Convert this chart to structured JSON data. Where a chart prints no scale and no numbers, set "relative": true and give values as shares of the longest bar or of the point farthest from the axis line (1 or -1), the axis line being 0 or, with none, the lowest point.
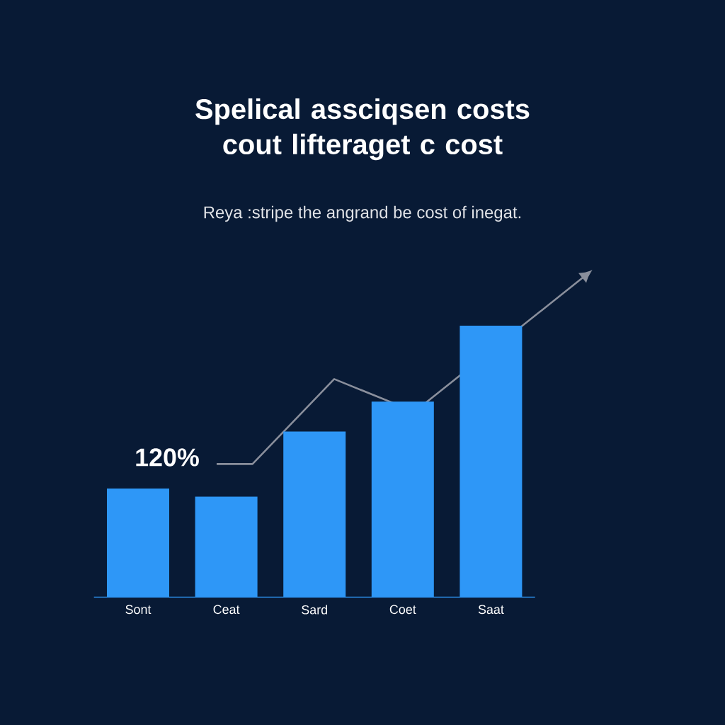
{
  "chart_data": {
    "type": "bar",
    "title": "Spelical assciqsen costs cout lifteraget c cost",
    "subtitle": "Reya :stripe the angrand be cost of inegat.",
    "categories": [
      "Sont",
      "Ceat",
      "Sard",
      "Coet",
      "Saat"
    ],
    "values": [
      0.4,
      0.37,
      0.61,
      0.72,
      1
    ],
    "color": "#2e97f7",
    "relative": true,
    "annotations": [
      "120%"
    ]
  }
}
